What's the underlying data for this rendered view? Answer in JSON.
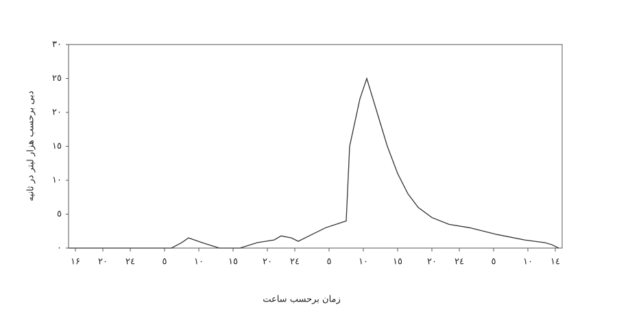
{
  "chart_data": {
    "type": "line",
    "x_label": "زمان برحسب ساعت",
    "y_label": "دبی برحسب هزار لیتر در ثانیه",
    "x": [
      -1,
      14,
      15.5,
      16.5,
      18.5,
      21,
      24,
      26.5,
      29,
      30,
      31.5,
      32.5,
      34.5,
      36.5,
      38,
      39.5,
      40,
      41.5,
      42.5,
      44,
      45.5,
      47,
      48.5,
      50,
      52,
      54.5,
      57.5,
      61.5,
      65.5,
      68.5,
      69.5,
      70.5
    ],
    "series": [
      {
        "color": "#333333",
        "values": [
          0,
          0,
          0.8,
          1.5,
          0.8,
          0,
          0,
          0.8,
          1.2,
          1.8,
          1.5,
          1,
          2,
          3,
          3.5,
          4,
          15,
          22,
          25,
          20,
          15,
          11,
          8,
          6,
          4.5,
          3.5,
          3,
          2,
          1.2,
          0.8,
          0.5,
          0
        ]
      }
    ],
    "xlim": [
      -1,
      71
    ],
    "xticks": [
      {
        "value": 0,
        "label": "۱۶"
      },
      {
        "value": 4,
        "label": "۲۰"
      },
      {
        "value": 8,
        "label": "۲٤"
      },
      {
        "value": 13,
        "label": "٥"
      },
      {
        "value": 18,
        "label": "۱۰"
      },
      {
        "value": 23,
        "label": "۱٥"
      },
      {
        "value": 28,
        "label": "۲۰"
      },
      {
        "value": 32,
        "label": "۲٤"
      },
      {
        "value": 37,
        "label": "٥"
      },
      {
        "value": 42,
        "label": "۱۰"
      },
      {
        "value": 47,
        "label": "۱٥"
      },
      {
        "value": 52,
        "label": "۲۰"
      },
      {
        "value": 56,
        "label": "۲٤"
      },
      {
        "value": 61,
        "label": "٥"
      },
      {
        "value": 66,
        "label": "۱۰"
      },
      {
        "value": 70,
        "label": "۱٤"
      }
    ],
    "ylim": [
      0,
      30
    ],
    "yticks": [
      {
        "value": 0,
        "label": "۰"
      },
      {
        "value": 5,
        "label": "٥"
      },
      {
        "value": 10,
        "label": "۱۰"
      },
      {
        "value": 15,
        "label": "۱٥"
      },
      {
        "value": 20,
        "label": "۲۰"
      },
      {
        "value": 25,
        "label": "۲٥"
      },
      {
        "value": 30,
        "label": "۳۰"
      }
    ],
    "grid": false
  }
}
